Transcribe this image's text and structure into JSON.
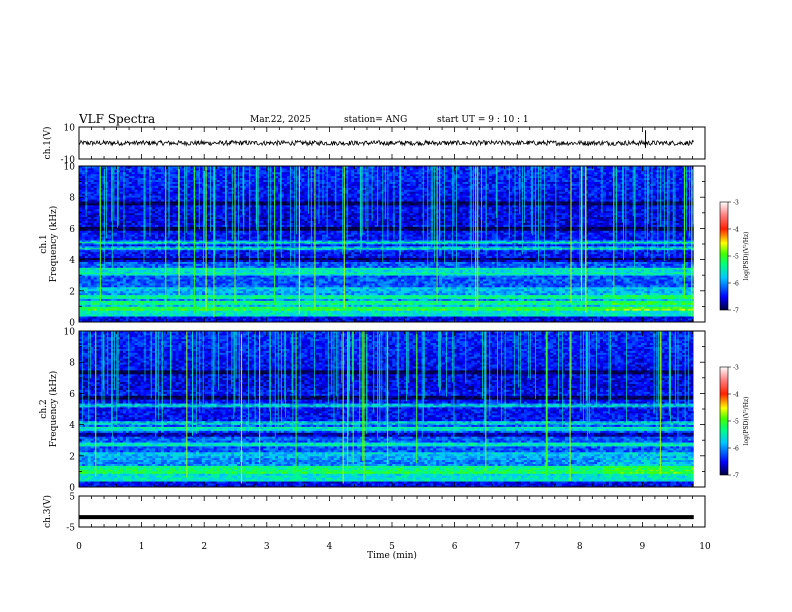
{
  "header": {
    "title": "VLF Spectra",
    "date": "Mar.22, 2025",
    "station": "station= ANG",
    "start": "start  UT =   9 : 10 : 1"
  },
  "chart_data": [
    {
      "type": "line",
      "panel": "ch1-waveform",
      "ylabel": "ch.1(V)",
      "ylim": [
        -10,
        10
      ],
      "y_ticks": [
        "10",
        "-10"
      ],
      "xlim": [
        0,
        10
      ],
      "series": [
        {
          "x_range": [
            0,
            9.82
          ],
          "mean": 0.0,
          "amplitude_approx": 1.5
        }
      ],
      "spikes_x": [
        9.05
      ]
    },
    {
      "type": "heatmap",
      "panel": "ch1-spectrogram",
      "ylabel": "ch.1\nFrequency  (kHz)",
      "ylim": [
        0,
        10
      ],
      "y_ticks": [
        "0",
        "2",
        "4",
        "6",
        "8",
        "10"
      ],
      "xlim": [
        0,
        10
      ],
      "data_x_range": [
        0,
        9.82
      ],
      "colorbar": {
        "label": "log(PSD)(V²/Hz)",
        "range": [
          -7,
          -3
        ],
        "ticks": [
          "-3",
          "-4",
          "-5",
          "-6",
          "-7"
        ]
      },
      "bright_bands_khz": [
        0.9,
        1.3,
        1.6,
        3.1,
        3.4,
        4.7,
        5.1
      ],
      "dark_bands_khz": [
        4.0,
        6.0,
        7.6
      ]
    },
    {
      "type": "heatmap",
      "panel": "ch2-spectrogram",
      "ylabel": "ch.2\nFrequency  (kHz)",
      "ylim": [
        0,
        10
      ],
      "y_ticks": [
        "0",
        "2",
        "4",
        "6",
        "8",
        "10"
      ],
      "xlim": [
        0,
        10
      ],
      "data_x_range": [
        0,
        9.82
      ],
      "colorbar": {
        "label": "log(PSD)(V²/Hz)",
        "range": [
          -7,
          -3
        ],
        "ticks": [
          "-3",
          "-4",
          "-5",
          "-6",
          "-7"
        ]
      },
      "bright_bands_khz": [
        1.0,
        1.3,
        2.7,
        3.8,
        4.1,
        5.2
      ],
      "dark_bands_khz": [
        3.4,
        5.8,
        7.4
      ]
    },
    {
      "type": "line",
      "panel": "ch3-waveform",
      "ylabel": "ch.3(V)",
      "ylim": [
        -5,
        5
      ],
      "y_ticks": [
        "5",
        "-5"
      ],
      "xlim": [
        0,
        10
      ],
      "series": [
        {
          "x_range": [
            0,
            9.82
          ],
          "constant": -1.8
        }
      ]
    }
  ],
  "x_axis": {
    "label": "Time  (min)",
    "ticks": [
      "0",
      "1",
      "2",
      "3",
      "4",
      "5",
      "6",
      "7",
      "8",
      "9",
      "10"
    ]
  },
  "colors": {
    "frame": "#000000",
    "trace": "#000000",
    "background": "#ffffff"
  }
}
